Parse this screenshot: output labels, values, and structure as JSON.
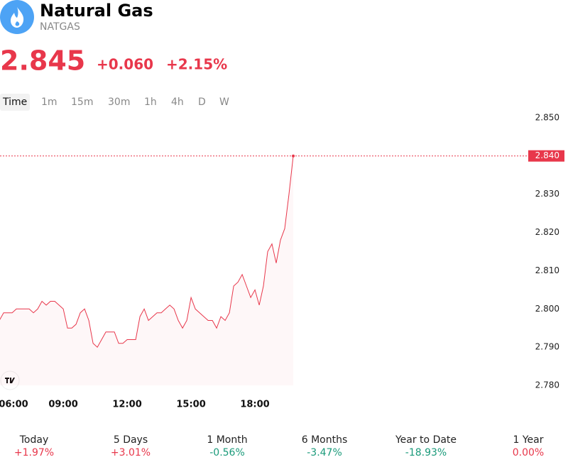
{
  "header": {
    "name": "Natural Gas",
    "symbol": "NATGAS"
  },
  "quote": {
    "price": "2.845",
    "change": "+0.060",
    "change_percent": "+2.15%"
  },
  "timeframes": [
    "Time",
    "1m",
    "15m",
    "30m",
    "1h",
    "4h",
    "D",
    "W"
  ],
  "chart_data": {
    "type": "line",
    "color": "#e8374b",
    "x": [
      6.0,
      6.2,
      6.4,
      6.6,
      6.8,
      7.0,
      7.2,
      7.4,
      7.6,
      7.8,
      8.0,
      8.2,
      8.4,
      8.6,
      8.8,
      9.0,
      9.2,
      9.4,
      9.6,
      9.8,
      10.0,
      10.2,
      10.4,
      10.6,
      10.8,
      11.0,
      11.2,
      11.4,
      11.6,
      11.8,
      12.0,
      12.2,
      12.4,
      12.6,
      12.8,
      13.0,
      13.2,
      13.4,
      13.6,
      13.8,
      14.0,
      14.2,
      14.4,
      14.6,
      14.8,
      15.0,
      15.2,
      15.4,
      15.6,
      15.8,
      16.0,
      16.2,
      16.4,
      16.6,
      16.8,
      17.0,
      17.2,
      17.4,
      17.6,
      17.8,
      18.0,
      18.2,
      18.4,
      18.6,
      18.8,
      19.0,
      19.2,
      19.4,
      19.6,
      19.8
    ],
    "values": [
      2.797,
      2.799,
      2.799,
      2.799,
      2.8,
      2.8,
      2.8,
      2.8,
      2.799,
      2.8,
      2.802,
      2.801,
      2.802,
      2.802,
      2.801,
      2.8,
      2.795,
      2.795,
      2.796,
      2.799,
      2.8,
      2.797,
      2.791,
      2.79,
      2.792,
      2.794,
      2.794,
      2.794,
      2.791,
      2.791,
      2.792,
      2.792,
      2.792,
      2.798,
      2.8,
      2.797,
      2.798,
      2.799,
      2.799,
      2.8,
      2.801,
      2.8,
      2.797,
      2.795,
      2.797,
      2.803,
      2.8,
      2.799,
      2.798,
      2.797,
      2.797,
      2.795,
      2.798,
      2.797,
      2.799,
      2.806,
      2.807,
      2.809,
      2.806,
      2.803,
      2.805,
      2.801,
      2.806,
      2.815,
      2.817,
      2.812,
      2.818,
      2.821,
      2.83,
      2.84
    ],
    "xlim": [
      6.03,
      30.7
    ],
    "xticks": [
      {
        "value": 6,
        "label": "06:00"
      },
      {
        "value": 9,
        "label": "09:00"
      },
      {
        "value": 12,
        "label": "12:00"
      },
      {
        "value": 15,
        "label": "15:00"
      },
      {
        "value": 18,
        "label": "18:00"
      }
    ],
    "ylim": [
      2.7778,
      2.852
    ],
    "yticks": [
      {
        "value": 2.78,
        "label": "2.780"
      },
      {
        "value": 2.79,
        "label": "2.790"
      },
      {
        "value": 2.8,
        "label": "2.800"
      },
      {
        "value": 2.81,
        "label": "2.810"
      },
      {
        "value": 2.82,
        "label": "2.820"
      },
      {
        "value": 2.83,
        "label": "2.830"
      },
      {
        "value": 2.85,
        "label": "2.850"
      }
    ],
    "price_line": {
      "value": 2.84,
      "label": "2.840"
    }
  },
  "performance": [
    {
      "label": "Today",
      "value": "+1.97%",
      "color": "#e8374b"
    },
    {
      "label": "5 Days",
      "value": "+3.01%",
      "color": "#e8374b"
    },
    {
      "label": "1 Month",
      "value": "-0.56%",
      "color": "#1a9a7a"
    },
    {
      "label": "6 Months",
      "value": "-3.47%",
      "color": "#1a9a7a"
    },
    {
      "label": "Year to Date",
      "value": "-18.93%",
      "color": "#1a9a7a"
    },
    {
      "label": "1 Year",
      "value": "0.00%",
      "color": "#e8374b"
    }
  ]
}
